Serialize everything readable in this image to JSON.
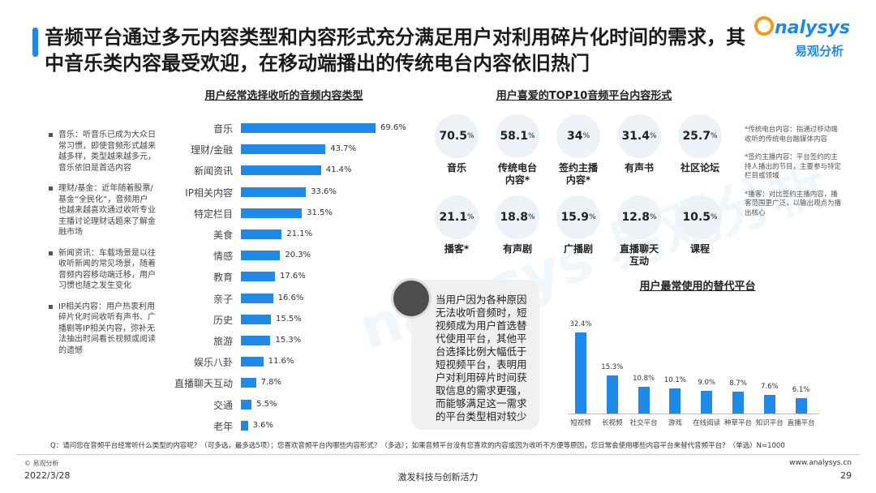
{
  "header": {
    "title": "音频平台通过多元内容类型和内容形式充分满足用户对利用碎片化时间的需求，其中音乐类内容最受欢迎，在移动端播出的传统电台内容依旧热门",
    "logo": "nalysys",
    "logo_sub": "易观分析"
  },
  "notes": [
    "音乐：听音乐已成为大众日常习惯，即使音频形式越来越多样，类型越来越多元，音乐依旧是首选内容",
    "理财/基金：近年随着股票/基金“全民化”，音频用户也越来越喜欢通过收听专业主播讨论理财话题来了解金融市场",
    "新闻资讯：车载场景是以往收听新闻的常见场景，随着音频内容移动端迁移，用户习惯也随之发生变化",
    "IP相关内容：用户热衷利用碎片化时间收听有声书、广播剧等IP相关内容，弥补无法抽出时间看长视频或阅读的遗憾"
  ],
  "chart_data": [
    {
      "type": "bar",
      "orientation": "horizontal",
      "title": "用户经常选择收听的音频内容类型",
      "color": "#1e8ae6",
      "categories": [
        "音乐",
        "理财/金融",
        "新闻资讯",
        "IP相关内容",
        "特定栏目",
        "美食",
        "情感",
        "教育",
        "亲子",
        "历史",
        "旅游",
        "娱乐八卦",
        "直播聊天互动",
        "交通",
        "老年"
      ],
      "values": [
        69.6,
        43.7,
        41.4,
        33.6,
        31.5,
        21.1,
        20.3,
        17.6,
        16.6,
        15.5,
        15.3,
        11.6,
        7.8,
        5.5,
        3.6
      ],
      "value_labels": [
        "69.6%",
        "43.7%",
        "41.4%",
        "33.6%",
        "31.5%",
        "21.1%",
        "20.3%",
        "17.6%",
        "16.6%",
        "15.5%",
        "15.3%",
        "11.6%",
        "7.8%",
        "5.5%",
        "3.6%"
      ]
    },
    {
      "type": "circle-grid",
      "title": "用户喜爱的TOP10音频平台内容形式",
      "unit": "%",
      "categories": [
        "音乐",
        "传统电台内容*",
        "签约主播内容*",
        "有声书",
        "社区论坛",
        "播客*",
        "有声剧",
        "广播剧",
        "直播聊天互动",
        "课程"
      ],
      "values": [
        70.5,
        58.1,
        34,
        31.4,
        25.7,
        21.1,
        18.8,
        15.9,
        12.8,
        10.5
      ],
      "notes": [
        "*传统电台内容：指通过移动端收听的传统电台融媒体内容",
        "*签约主播内容：平台签约的主持人播出的节目，主要参与特定栏目或领域",
        "*播客：对比签约主播内容，播客范围更广泛，以输出观点为播出核心"
      ]
    },
    {
      "type": "bar",
      "orientation": "vertical",
      "title": "用户最常使用的替代平台",
      "color": "#1e8ae6",
      "categories": [
        "短视频",
        "长视频",
        "社交平台",
        "游戏",
        "在线阅读",
        "种草平台",
        "知识平台",
        "直播平台"
      ],
      "values": [
        32.4,
        15.3,
        10.8,
        10.1,
        9.0,
        8.7,
        7.6,
        6.1
      ],
      "value_labels": [
        "32.4%",
        "15.3%",
        "10.8%",
        "10.1%",
        "9.0%",
        "8.7%",
        "7.6%",
        "6.1%"
      ]
    }
  ],
  "callout": "当用户因为各种原因无法收听音频时，短视频成为用户首选替代使用平台，其他平台选择比例大幅低于短视频平台，表明用户对利用碎片时间获取信息的需求更强，而能够满足这一需求的平台类型相对较少",
  "footer": {
    "question": "Q：请问您在音频平台经常听什么类型的内容呢？（可多选，最多选5项）；您喜欢音频平台内哪些内容形式？（多选）；如果音频平台没有您喜欢的内容或因为收听不方便等原因，您日常会使用哪些内容平台来替代音频平台？（单选）N=1000",
    "copyright": "© 易观分析",
    "date": "2022/3/28",
    "slogan": "激发科技与创新活力",
    "url": "www.analysys.cn",
    "page": "29"
  }
}
